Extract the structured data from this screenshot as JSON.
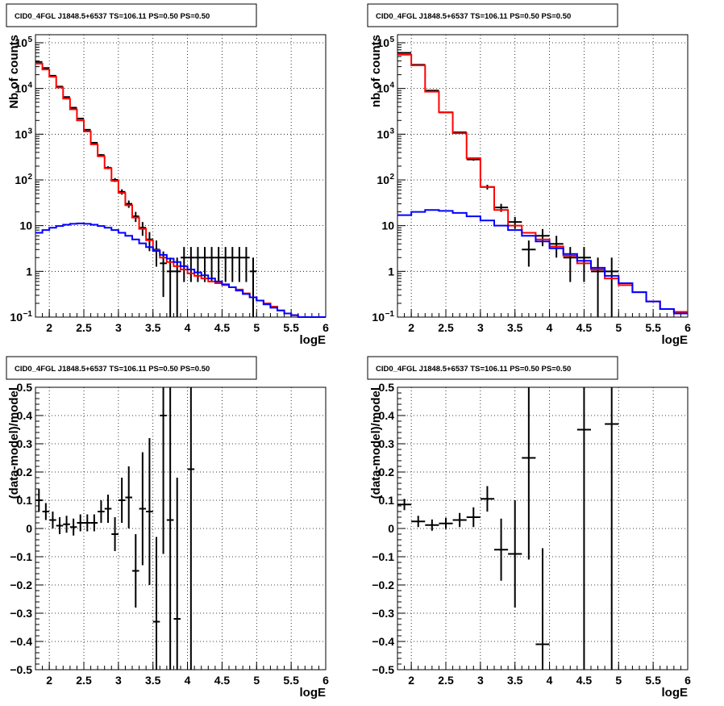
{
  "colors": {
    "data": "#000000",
    "total_model": "#ff0000",
    "source_model": "#0000ff",
    "grid": "#000000"
  },
  "chart_data": [
    {
      "id": "top-left",
      "type": "line",
      "title": "CID0_4FGL J1848.5+6537 TS=106.11 PS=0.50 PS=0.50",
      "xlabel": "logE",
      "ylabel": "Nb of counts",
      "xlim": [
        1.8,
        6.0
      ],
      "ylim": [
        0.1,
        150000
      ],
      "yscale": "log",
      "xticks": [
        "2",
        "2.5",
        "3",
        "3.5",
        "4",
        "4.5",
        "5",
        "5.5",
        "6"
      ],
      "grid": true,
      "bin_edges": [
        1.8,
        1.9,
        2.0,
        2.1,
        2.2,
        2.3,
        2.4,
        2.5,
        2.6,
        2.7,
        2.8,
        2.9,
        3.0,
        3.1,
        3.2,
        3.3,
        3.4,
        3.5,
        3.6,
        3.7,
        3.8,
        3.9,
        4.0,
        4.1,
        4.2,
        4.3,
        4.4,
        4.5,
        4.6,
        4.7,
        4.8,
        4.9,
        5.0,
        5.1,
        5.2,
        5.3,
        5.4,
        5.5,
        5.6,
        5.7,
        5.8,
        5.9,
        6.0
      ],
      "series": [
        {
          "name": "",
          "kind": "data",
          "x": [
            1.85,
            1.95,
            2.05,
            2.15,
            2.25,
            2.35,
            2.45,
            2.55,
            2.65,
            2.75,
            2.85,
            2.95,
            3.05,
            3.15,
            3.25,
            3.35,
            3.45,
            3.55,
            3.65,
            3.75,
            3.85,
            3.95,
            4.05,
            4.15,
            4.25,
            4.35,
            4.45,
            4.55,
            4.65,
            4.75,
            4.85,
            4.95
          ],
          "y": [
            38000,
            28000,
            19000,
            11000,
            6500,
            3800,
            2200,
            1250,
            650,
            350,
            185,
            100,
            55,
            30,
            16,
            9,
            5,
            3,
            1.5,
            1,
            1,
            2,
            2,
            2,
            2,
            2,
            2,
            2,
            2,
            2,
            2,
            1
          ],
          "yerr_low": [
            0.2,
            0.2,
            0.2,
            0.2,
            0.2,
            0.2,
            0.2,
            0.2,
            0.2,
            0.2,
            0.2,
            0.2,
            0.2,
            0.2,
            0.2,
            0.2,
            0.2,
            0.2,
            0.2,
            0.2,
            0.2,
            0.2,
            0.2,
            0.2,
            0.2,
            0.2,
            0.2,
            0.2,
            0.2,
            0.2,
            0.2,
            0.2
          ]
        },
        {
          "name": "",
          "kind": "total_model",
          "y": [
            35000,
            26000,
            18000,
            10500,
            6000,
            3500,
            2000,
            1150,
            600,
            330,
            180,
            95,
            52,
            28,
            15,
            8.5,
            4.8,
            2.9,
            2.0,
            1.6,
            1.3,
            1.1,
            0.9,
            0.8,
            0.7,
            0.6,
            0.55,
            0.5,
            0.45,
            0.4,
            0.33,
            0.27,
            0.23,
            0.2,
            0.17,
            0.14,
            0.12,
            0.11,
            0.1,
            0.1,
            0.1,
            0.1
          ]
        },
        {
          "name": "",
          "kind": "source_model",
          "y": [
            7.0,
            8.0,
            9.0,
            9.8,
            10.5,
            11.0,
            11.2,
            11.0,
            10.5,
            9.8,
            9.0,
            8.0,
            7.0,
            6.0,
            5.0,
            4.1,
            3.4,
            2.8,
            2.3,
            1.9,
            1.6,
            1.3,
            1.1,
            0.95,
            0.82,
            0.7,
            0.6,
            0.52,
            0.45,
            0.38,
            0.32,
            0.27,
            0.23,
            0.19,
            0.16,
            0.14,
            0.12,
            0.11,
            0.1,
            0.1,
            0.1,
            0.1
          ]
        }
      ]
    },
    {
      "id": "top-right",
      "type": "line",
      "title": "CID0_4FGL J1848.5+6537 TS=106.11 PS=0.50 PS=0.50",
      "xlabel": "logE",
      "ylabel": "nb of counts",
      "xlim": [
        1.8,
        6.0
      ],
      "ylim": [
        0.1,
        150000
      ],
      "yscale": "log",
      "xticks": [
        "2",
        "2.5",
        "3",
        "3.5",
        "4",
        "4.5",
        "5",
        "5.5",
        "6"
      ],
      "grid": true,
      "bin_edges": [
        1.8,
        2.0,
        2.2,
        2.4,
        2.6,
        2.8,
        3.0,
        3.2,
        3.4,
        3.6,
        3.8,
        4.0,
        4.2,
        4.4,
        4.6,
        4.8,
        5.0,
        5.2,
        5.4,
        5.6,
        5.8,
        6.0
      ],
      "series": [
        {
          "name": "",
          "kind": "data",
          "x": [
            1.9,
            2.1,
            2.3,
            2.5,
            2.7,
            2.9,
            3.1,
            3.3,
            3.5,
            3.7,
            3.9,
            4.1,
            4.3,
            4.5,
            4.7,
            4.9
          ],
          "y": [
            60000,
            33000,
            9000,
            3000,
            1100,
            280,
            70,
            25,
            12,
            3,
            6,
            4,
            2,
            2,
            1,
            1
          ]
        },
        {
          "name": "",
          "kind": "total_model",
          "y": [
            55000,
            32000,
            8500,
            3000,
            1050,
            300,
            70,
            22,
            10,
            7,
            5,
            3.5,
            2.2,
            1.5,
            1.1,
            0.7,
            0.5,
            0.35,
            0.22,
            0.15,
            0.13
          ]
        },
        {
          "name": "",
          "kind": "source_model",
          "y": [
            17,
            20,
            22,
            21,
            19,
            16,
            13,
            10,
            8,
            6,
            4.5,
            3.2,
            2.4,
            1.7,
            1.2,
            0.8,
            0.55,
            0.35,
            0.22,
            0.15,
            0.12
          ]
        }
      ]
    },
    {
      "id": "bottom-left",
      "type": "scatter",
      "title": "CID0_4FGL J1848.5+6537 TS=106.11 PS=0.50 PS=0.50",
      "xlabel": "logE",
      "ylabel": "(data-model)/model",
      "xlim": [
        1.8,
        6.0
      ],
      "ylim": [
        -0.5,
        0.5
      ],
      "xticks": [
        "2",
        "2.5",
        "3",
        "3.5",
        "4",
        "4.5",
        "5",
        "5.5",
        "6"
      ],
      "yticks": [
        "−0.5",
        "−0.4",
        "−0.3",
        "−0.2",
        "−0.1",
        "0",
        "0.1",
        "0.2",
        "0.3",
        "0.4",
        "0.5"
      ],
      "grid": true,
      "points": [
        {
          "x": 1.85,
          "y": 0.1,
          "err": 0.04
        },
        {
          "x": 1.95,
          "y": 0.06,
          "err": 0.03
        },
        {
          "x": 2.05,
          "y": 0.03,
          "err": 0.03
        },
        {
          "x": 2.15,
          "y": 0.01,
          "err": 0.03
        },
        {
          "x": 2.25,
          "y": 0.015,
          "err": 0.03
        },
        {
          "x": 2.35,
          "y": 0.005,
          "err": 0.03
        },
        {
          "x": 2.45,
          "y": 0.02,
          "err": 0.03
        },
        {
          "x": 2.55,
          "y": 0.02,
          "err": 0.03
        },
        {
          "x": 2.65,
          "y": 0.02,
          "err": 0.03
        },
        {
          "x": 2.75,
          "y": 0.06,
          "err": 0.04
        },
        {
          "x": 2.85,
          "y": 0.07,
          "err": 0.05
        },
        {
          "x": 2.95,
          "y": -0.02,
          "err": 0.06
        },
        {
          "x": 3.05,
          "y": 0.1,
          "err": 0.08
        },
        {
          "x": 3.15,
          "y": 0.11,
          "err": 0.11
        },
        {
          "x": 3.25,
          "y": -0.15,
          "err": 0.13
        },
        {
          "x": 3.35,
          "y": 0.07,
          "err": 0.2
        },
        {
          "x": 3.45,
          "y": 0.06,
          "err": 0.26
        },
        {
          "x": 3.55,
          "y": -0.33,
          "err": 0.3
        },
        {
          "x": 3.65,
          "y": 0.4,
          "err": 0.49
        },
        {
          "x": 3.75,
          "y": 0.03,
          "err": 0.6
        },
        {
          "x": 3.85,
          "y": -0.32,
          "err": 0.5
        },
        {
          "x": 4.05,
          "y": 0.21,
          "err": 0.9
        }
      ]
    },
    {
      "id": "bottom-right",
      "type": "scatter",
      "title": "CID0_4FGL J1848.5+6537 TS=106.11 PS=0.50 PS=0.50",
      "xlabel": "logE",
      "ylabel": "(data-model)/model",
      "xlim": [
        1.8,
        6.0
      ],
      "ylim": [
        -0.5,
        0.5
      ],
      "xticks": [
        "2",
        "2.5",
        "3",
        "3.5",
        "4",
        "4.5",
        "5",
        "5.5",
        "6"
      ],
      "yticks": [
        "−0.5",
        "−0.4",
        "−0.3",
        "−0.2",
        "−0.1",
        "0",
        "0.1",
        "0.2",
        "0.3",
        "0.4",
        "0.5"
      ],
      "grid": true,
      "points": [
        {
          "x": 1.9,
          "y": 0.085,
          "err": 0.02
        },
        {
          "x": 2.1,
          "y": 0.025,
          "err": 0.02
        },
        {
          "x": 2.3,
          "y": 0.012,
          "err": 0.02
        },
        {
          "x": 2.5,
          "y": 0.018,
          "err": 0.02
        },
        {
          "x": 2.7,
          "y": 0.03,
          "err": 0.025
        },
        {
          "x": 2.9,
          "y": 0.04,
          "err": 0.035
        },
        {
          "x": 3.1,
          "y": 0.105,
          "err": 0.045
        },
        {
          "x": 3.3,
          "y": -0.075,
          "err": 0.11
        },
        {
          "x": 3.5,
          "y": -0.09,
          "err": 0.19
        },
        {
          "x": 3.7,
          "y": 0.25,
          "err": 0.36
        },
        {
          "x": 3.9,
          "y": -0.41,
          "err": 0.34
        },
        {
          "x": 4.5,
          "y": 0.35,
          "err": 0.9
        },
        {
          "x": 4.9,
          "y": 0.37,
          "err": 0.9
        }
      ]
    }
  ]
}
